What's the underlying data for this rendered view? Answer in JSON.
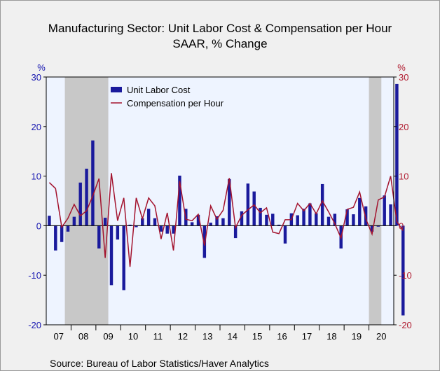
{
  "chart_data": {
    "type": "bar",
    "title": "Manufacturing Sector: Unit Labor Cost & Compensation per Hour",
    "subtitle": "SAAR, % Change",
    "ylabel_left": "%",
    "ylabel_right": "%",
    "ylim": [
      -20,
      30
    ],
    "yticks": [
      -20,
      -10,
      0,
      10,
      20,
      30
    ],
    "x_period_labels": [
      "07",
      "08",
      "09",
      "10",
      "11",
      "12",
      "13",
      "14",
      "15",
      "16",
      "17",
      "18",
      "19",
      "20"
    ],
    "quarter_start": "2007Q1",
    "shaded_recessions": [
      [
        "2007Q4",
        "2009Q2"
      ],
      [
        "2020Q1",
        "2020Q2"
      ]
    ],
    "grid": false,
    "legend_position": "top-left",
    "source": "Source:  Bureau of Labor Statistics/Haver Analytics",
    "colors": {
      "bars": "#1a1a9c",
      "line": "#a3132e",
      "plot_bg": "#eef4ff",
      "recession": "#c8c8c8",
      "left_axis": "#1515b0",
      "right_axis": "#b01c30"
    },
    "series": [
      {
        "name": "Unit Labor Cost",
        "type": "bar",
        "values": [
          2.0,
          -5.0,
          -3.3,
          -1.2,
          1.8,
          8.7,
          11.5,
          17.2,
          -4.6,
          1.6,
          -12.0,
          -2.8,
          -13.0,
          0.2,
          -0.3,
          1.5,
          3.4,
          1.5,
          -1.2,
          -1.6,
          -1.6,
          10.1,
          3.4,
          0.7,
          2.2,
          -6.5,
          0.6,
          1.9,
          1.5,
          9.4,
          -2.5,
          2.9,
          8.5,
          6.9,
          3.6,
          2.2,
          2.4,
          0.2,
          -3.6,
          2.5,
          2.1,
          3.4,
          4.5,
          2.5,
          8.4,
          1.8,
          2.4,
          -4.6,
          3.3,
          2.3,
          5.6,
          3.9,
          -1.2,
          -0.2,
          6.1,
          4.3,
          28.6,
          -18.1
        ]
      },
      {
        "name": "Compensation per Hour",
        "type": "line",
        "values": [
          8.7,
          7.5,
          -0.3,
          1.5,
          4.3,
          2.0,
          3.0,
          6.0,
          9.5,
          -6.5,
          10.6,
          1.0,
          5.6,
          -8.3,
          5.6,
          1.4,
          5.6,
          4.0,
          -2.7,
          2.6,
          -5.0,
          9.0,
          1.3,
          1.0,
          2.3,
          -4.0,
          4.0,
          1.3,
          3.1,
          9.6,
          -0.4,
          2.1,
          3.2,
          4.2,
          2.6,
          3.6,
          -1.3,
          -1.6,
          1.2,
          1.2,
          4.5,
          3.0,
          4.5,
          2.4,
          5.0,
          2.8,
          0.4,
          -2.5,
          3.3,
          3.7,
          6.8,
          1.4,
          -1.7,
          5.2,
          5.8,
          10.0,
          0.8,
          -1.0
        ]
      }
    ]
  }
}
